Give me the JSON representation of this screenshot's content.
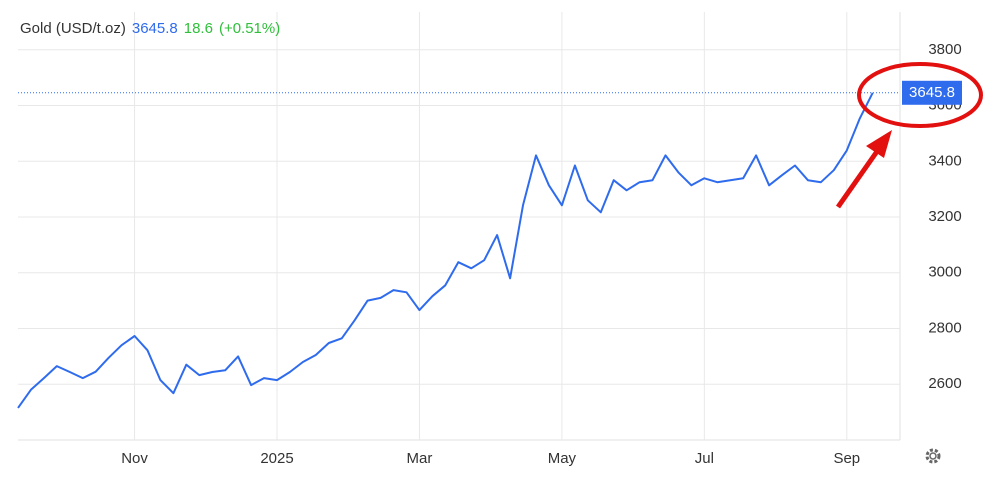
{
  "chart_data": {
    "type": "line",
    "title": "Gold (USD/t.oz)",
    "change": 18.6,
    "change_percent": "(+0.51%)",
    "categories": [
      null,
      null,
      null,
      null,
      null,
      null,
      null,
      null,
      null,
      "Nov",
      null,
      null,
      null,
      null,
      null,
      null,
      null,
      null,
      null,
      null,
      "2025",
      null,
      null,
      null,
      null,
      null,
      null,
      null,
      null,
      null,
      null,
      "Mar",
      null,
      null,
      null,
      null,
      null,
      null,
      null,
      null,
      null,
      null,
      "May",
      null,
      null,
      null,
      null,
      null,
      null,
      null,
      null,
      null,
      null,
      "Jul",
      null,
      null,
      null,
      null,
      null,
      null,
      null,
      null,
      null,
      null,
      "Sep",
      null,
      null
    ],
    "values": [
      2515,
      2580,
      2622,
      2665,
      2644,
      2622,
      2645,
      2695,
      2740,
      2773,
      2722,
      2615,
      2568,
      2670,
      2633,
      2644,
      2650,
      2700,
      2597,
      2622,
      2615,
      2644,
      2680,
      2705,
      2748,
      2765,
      2830,
      2900,
      2910,
      2938,
      2930,
      2866,
      2916,
      2955,
      3038,
      3016,
      3045,
      3135,
      2980,
      3242,
      3421,
      3314,
      3242,
      3385,
      3260,
      3217,
      3332,
      3296,
      3325,
      3332,
      3421,
      3360,
      3314,
      3339,
      3325,
      3332,
      3339,
      3421,
      3314,
      3350,
      3385,
      3332,
      3325,
      3368,
      3439,
      3554,
      3645.8
    ],
    "color": "#2f6bed",
    "ylim": [
      2400,
      3950
    ],
    "yticks": [
      2600,
      2800,
      3000,
      3200,
      3400,
      3600,
      3800
    ],
    "grid": true
  }
}
